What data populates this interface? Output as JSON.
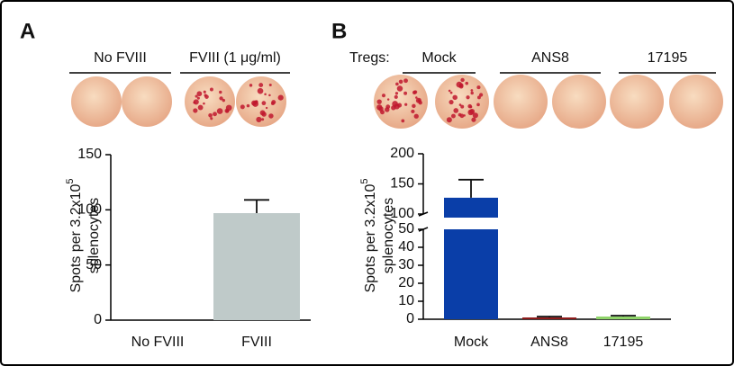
{
  "chart_data": [
    {
      "type": "bar",
      "panel": "A",
      "header_groups": [
        "No FVIII",
        "FVIII (1 μg/ml)"
      ],
      "y_label": {
        "text": "Spots per 3.2x10",
        "superscript": "5",
        "line2": "splenocytes"
      },
      "categories": [
        "No FVIII",
        "FVIII"
      ],
      "values": [
        0,
        97
      ],
      "errors": [
        null,
        12
      ],
      "colors": [
        "#bfcac9",
        "#bfcac9"
      ],
      "ylim": [
        0,
        150
      ],
      "yticks": [
        0,
        50,
        100,
        150
      ]
    },
    {
      "type": "bar",
      "panel": "B",
      "header_prefix": "Tregs:",
      "header_groups": [
        "Mock",
        "ANS8",
        "17195"
      ],
      "y_label": {
        "text": "Spots per 3.2x10",
        "superscript": "5",
        "line2": "splenocytes"
      },
      "categories": [
        "Mock",
        "ANS8",
        "17195"
      ],
      "values": [
        127,
        1,
        1.5
      ],
      "errors": [
        30,
        0.5,
        0.5
      ],
      "colors": [
        "#0a3ea8",
        "#8e1b1b",
        "#8fd46a"
      ],
      "ylim": [
        0,
        200
      ],
      "y_break": [
        50,
        100
      ],
      "yticks": [
        0,
        10,
        20,
        30,
        40,
        50,
        100,
        150,
        200
      ]
    }
  ]
}
